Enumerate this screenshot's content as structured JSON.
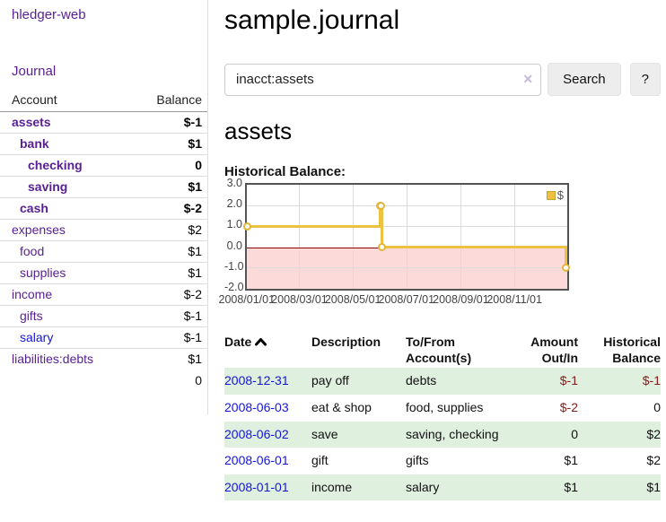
{
  "app": {
    "brand": "hledger-web",
    "nav_journal": "Journal"
  },
  "sidebar": {
    "headers": {
      "account": "Account",
      "balance": "Balance"
    },
    "accounts": [
      {
        "name": "assets",
        "indent": 1,
        "bold": true,
        "balance": "$-1",
        "neg": true,
        "dim": false,
        "link": "purple"
      },
      {
        "name": "bank",
        "indent": 2,
        "bold": true,
        "balance": "$1",
        "neg": false,
        "dim": false,
        "link": "purple"
      },
      {
        "name": "checking",
        "indent": 3,
        "bold": true,
        "balance": "0",
        "neg": false,
        "dim": false,
        "link": "purple"
      },
      {
        "name": "saving",
        "indent": 3,
        "bold": true,
        "balance": "$1",
        "neg": false,
        "dim": false,
        "link": "purple"
      },
      {
        "name": "cash",
        "indent": 2,
        "bold": true,
        "balance": "$-2",
        "neg": true,
        "dim": false,
        "link": "purple"
      },
      {
        "name": "expenses",
        "indent": 1,
        "bold": false,
        "balance": "$2",
        "neg": false,
        "dim": false,
        "link": "purple"
      },
      {
        "name": "food",
        "indent": 2,
        "bold": false,
        "balance": "$1",
        "neg": false,
        "dim": false,
        "link": "purple"
      },
      {
        "name": "supplies",
        "indent": 2,
        "bold": false,
        "balance": "$1",
        "neg": false,
        "dim": false,
        "link": "purple"
      },
      {
        "name": "income",
        "indent": 1,
        "bold": false,
        "balance": "$-2",
        "neg": true,
        "dim": true,
        "link": "purple"
      },
      {
        "name": "gifts",
        "indent": 2,
        "bold": false,
        "balance": "$-1",
        "neg": true,
        "dim": true,
        "link": "purple"
      },
      {
        "name": "salary",
        "indent": 2,
        "bold": false,
        "balance": "$-1",
        "neg": true,
        "dim": true,
        "link": "blue"
      },
      {
        "name": "liabilities:debts",
        "indent": 1,
        "bold": false,
        "balance": "$1",
        "neg": false,
        "dim": false,
        "link": "purple"
      }
    ],
    "total": "0"
  },
  "header": {
    "title": "sample.journal"
  },
  "search": {
    "value": "inacct:assets",
    "clear_icon": "✕",
    "button": "Search",
    "help": "?"
  },
  "register": {
    "title": "assets",
    "chart_label": "Historical Balance:",
    "columns": {
      "date": "Date",
      "description": "Description",
      "accounts": "To/From Account(s)",
      "amount": "Amount Out/In",
      "balance": "Historical Balance"
    },
    "rows": [
      {
        "date": "2008-12-31",
        "description": "pay off",
        "accounts": "debts",
        "amount": "$-1",
        "amount_neg": true,
        "balance": "$-1",
        "balance_neg": true
      },
      {
        "date": "2008-06-03",
        "description": "eat & shop",
        "accounts": "food, supplies",
        "amount": "$-2",
        "amount_neg": true,
        "balance": "0",
        "balance_neg": false
      },
      {
        "date": "2008-06-02",
        "description": "save",
        "accounts": "saving, checking",
        "amount": "0",
        "amount_neg": false,
        "balance": "$2",
        "balance_neg": false
      },
      {
        "date": "2008-06-01",
        "description": "gift",
        "accounts": "gifts",
        "amount": "$1",
        "amount_neg": false,
        "balance": "$2",
        "balance_neg": false
      },
      {
        "date": "2008-01-01",
        "description": "income",
        "accounts": "salary",
        "amount": "$1",
        "amount_neg": false,
        "balance": "$1",
        "balance_neg": false
      }
    ]
  },
  "chart_data": {
    "type": "line",
    "title": "Historical Balance:",
    "legend": "$",
    "legend_position": "top-right",
    "step": "after",
    "x_start": "2008-01-01",
    "x_end_days": 365,
    "points": [
      {
        "x": "2008-01-01",
        "y": 1
      },
      {
        "x": "2008-06-01",
        "y": 2
      },
      {
        "x": "2008-06-02",
        "y": 2
      },
      {
        "x": "2008-06-03",
        "y": 0
      },
      {
        "x": "2008-12-31",
        "y": -1
      }
    ],
    "ylim": [
      -2.0,
      3.0
    ],
    "yticks": [
      3.0,
      2.0,
      1.0,
      0.0,
      -1.0,
      -2.0
    ],
    "xticks": [
      "2008/01/01",
      "2008/03/01",
      "2008/05/01",
      "2008/07/01",
      "2008/09/01",
      "2008/11/01"
    ],
    "grid": true,
    "negative_region_color": "#fcdada",
    "zero_line_color": "#8b0000",
    "line_color": "#edc240"
  }
}
